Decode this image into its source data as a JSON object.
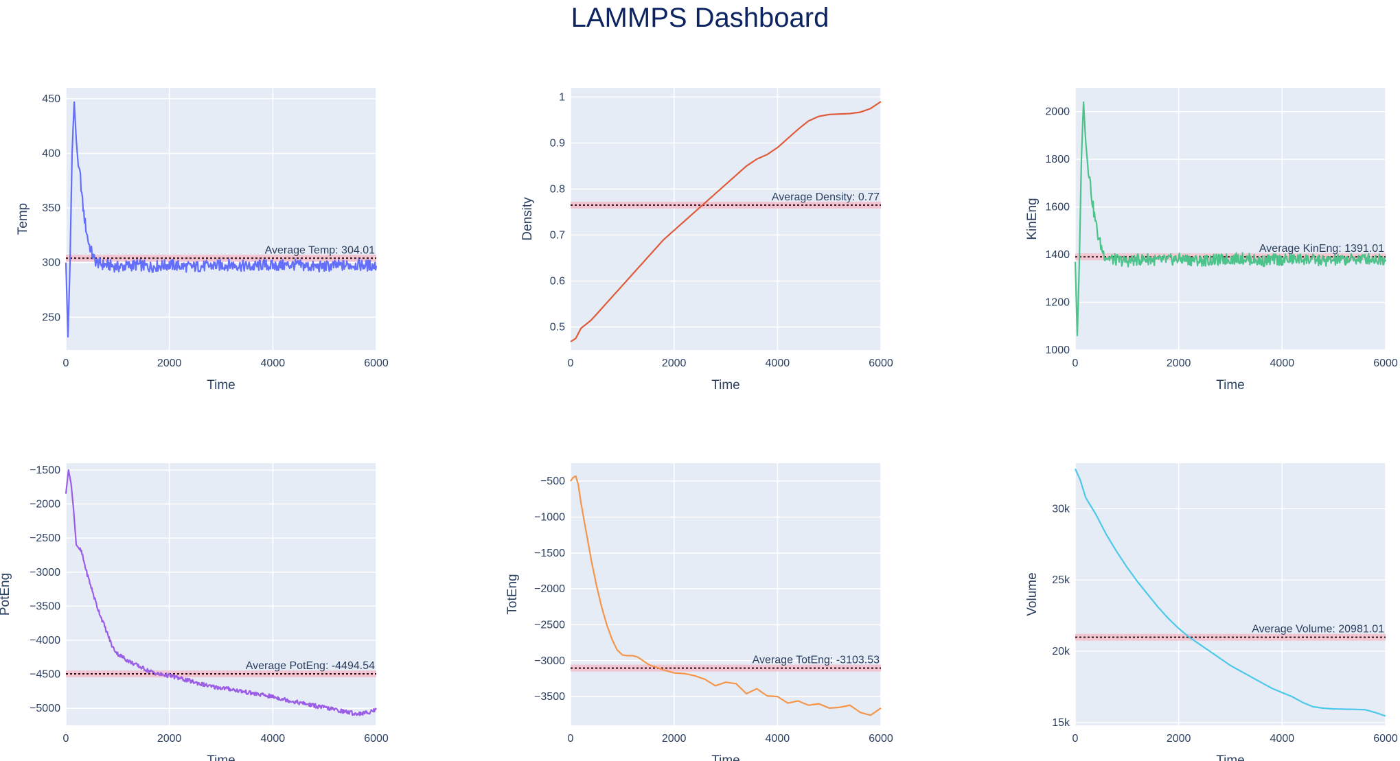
{
  "title": "LAMMPS Dashboard",
  "chart_data": [
    {
      "type": "line",
      "name": "Temp",
      "xlabel": "Time",
      "ylabel": "Temp",
      "color": "#636efa",
      "xlim": [
        0,
        6000
      ],
      "ylim": [
        220,
        460
      ],
      "xticks": [
        0,
        2000,
        4000,
        6000
      ],
      "xtick_labels": [
        "0",
        "2000",
        "4000",
        "6000"
      ],
      "yticks": [
        250,
        300,
        350,
        400,
        450
      ],
      "ytick_labels": [
        "250",
        "300",
        "350",
        "400",
        "450"
      ],
      "average": 304.01,
      "average_label": "Average Temp: 304.01",
      "x": [
        0,
        40,
        80,
        120,
        160,
        200,
        240,
        280,
        320,
        360,
        400,
        440,
        480,
        520,
        560,
        600,
        660,
        720,
        800,
        900,
        1000,
        1200,
        1400,
        1600,
        1800,
        2000,
        2400,
        2800,
        3200,
        3400,
        3600,
        3800,
        4000,
        4400,
        4800,
        5200,
        5600,
        6000
      ],
      "y": [
        300,
        232,
        300,
        400,
        447,
        412,
        388,
        378,
        355,
        340,
        328,
        318,
        312,
        306,
        302,
        300,
        299,
        298,
        298,
        297,
        296,
        297,
        298,
        296,
        297,
        298,
        296,
        297,
        298,
        297,
        296,
        298,
        297,
        298,
        296,
        297,
        298,
        297
      ],
      "grid": true
    },
    {
      "type": "line",
      "name": "Density",
      "xlabel": "Time",
      "ylabel": "Density",
      "color": "#e05a3a",
      "xlim": [
        0,
        6000
      ],
      "ylim": [
        0.45,
        1.02
      ],
      "xticks": [
        0,
        2000,
        4000,
        6000
      ],
      "xtick_labels": [
        "0",
        "2000",
        "4000",
        "6000"
      ],
      "yticks": [
        0.5,
        0.6,
        0.7,
        0.8,
        0.9,
        1.0
      ],
      "ytick_labels": [
        "0.5",
        "0.6",
        "0.7",
        "0.8",
        "0.9",
        "1"
      ],
      "average": 0.765,
      "average_label": "Average Density: 0.77",
      "x": [
        0,
        100,
        200,
        400,
        600,
        800,
        1000,
        1200,
        1400,
        1600,
        1800,
        2000,
        2200,
        2400,
        2600,
        2800,
        3000,
        3200,
        3400,
        3600,
        3800,
        4000,
        4200,
        4400,
        4600,
        4800,
        5000,
        5200,
        5400,
        5600,
        5800,
        6000
      ],
      "y": [
        0.468,
        0.475,
        0.497,
        0.515,
        0.54,
        0.565,
        0.59,
        0.615,
        0.64,
        0.665,
        0.69,
        0.71,
        0.73,
        0.75,
        0.77,
        0.79,
        0.81,
        0.83,
        0.85,
        0.865,
        0.875,
        0.89,
        0.91,
        0.93,
        0.948,
        0.958,
        0.962,
        0.963,
        0.964,
        0.967,
        0.975,
        0.99
      ],
      "grid": true
    },
    {
      "type": "line",
      "name": "KinEng",
      "xlabel": "Time",
      "ylabel": "KinEng",
      "color": "#4cc38a",
      "xlim": [
        0,
        6000
      ],
      "ylim": [
        1000,
        2100
      ],
      "xticks": [
        0,
        2000,
        4000,
        6000
      ],
      "xtick_labels": [
        "0",
        "2000",
        "4000",
        "6000"
      ],
      "yticks": [
        1000,
        1200,
        1400,
        1600,
        1800,
        2000
      ],
      "ytick_labels": [
        "1000",
        "1200",
        "1400",
        "1600",
        "1800",
        "2000"
      ],
      "average": 1391.01,
      "average_label": "Average KinEng: 1391.01",
      "x": [
        0,
        40,
        80,
        120,
        160,
        200,
        240,
        280,
        320,
        360,
        400,
        440,
        480,
        520,
        560,
        600,
        660,
        720,
        800,
        900,
        1000,
        1200,
        1400,
        1600,
        1800,
        2000,
        2400,
        2800,
        3200,
        3400,
        3600,
        3800,
        4000,
        4400,
        4800,
        5200,
        5600,
        6000
      ],
      "y": [
        1370,
        1060,
        1370,
        1800,
        2040,
        1880,
        1780,
        1720,
        1640,
        1580,
        1530,
        1480,
        1450,
        1420,
        1400,
        1390,
        1385,
        1380,
        1378,
        1375,
        1372,
        1378,
        1382,
        1375,
        1378,
        1382,
        1375,
        1378,
        1385,
        1380,
        1372,
        1380,
        1378,
        1382,
        1374,
        1378,
        1384,
        1378
      ],
      "grid": true
    },
    {
      "type": "line",
      "name": "PotEng",
      "xlabel": "Time",
      "ylabel": "PotEng",
      "color": "#9b5de5",
      "xlim": [
        0,
        6000
      ],
      "ylim": [
        -5250,
        -1400
      ],
      "xticks": [
        0,
        2000,
        4000,
        6000
      ],
      "xtick_labels": [
        "0",
        "2000",
        "4000",
        "6000"
      ],
      "yticks": [
        -5000,
        -4500,
        -4000,
        -3500,
        -3000,
        -2500,
        -2000,
        -1500
      ],
      "ytick_labels": [
        "−5000",
        "−4500",
        "−4000",
        "−3500",
        "−3000",
        "−2500",
        "−2000",
        "−1500"
      ],
      "average": -4494.54,
      "average_label": "Average PotEng: -4494.54",
      "x": [
        0,
        50,
        100,
        150,
        200,
        250,
        300,
        400,
        500,
        600,
        700,
        800,
        900,
        1000,
        1200,
        1400,
        1600,
        1800,
        2000,
        2400,
        2800,
        3200,
        3600,
        4000,
        4400,
        4800,
        5200,
        5600,
        5800,
        6000
      ],
      "y": [
        -1850,
        -1500,
        -1700,
        -2100,
        -2600,
        -2650,
        -2700,
        -3000,
        -3250,
        -3500,
        -3700,
        -3900,
        -4100,
        -4200,
        -4300,
        -4380,
        -4450,
        -4500,
        -4520,
        -4600,
        -4680,
        -4720,
        -4780,
        -4830,
        -4900,
        -4960,
        -5020,
        -5080,
        -5070,
        -5020
      ],
      "grid": true
    },
    {
      "type": "line",
      "name": "TotEng",
      "xlabel": "Time",
      "ylabel": "TotEng",
      "color": "#f4954a",
      "xlim": [
        0,
        6000
      ],
      "ylim": [
        -3900,
        -250
      ],
      "xticks": [
        0,
        2000,
        4000,
        6000
      ],
      "xtick_labels": [
        "0",
        "2000",
        "4000",
        "6000"
      ],
      "yticks": [
        -3500,
        -3000,
        -2500,
        -2000,
        -1500,
        -1000,
        -500
      ],
      "ytick_labels": [
        "−3500",
        "−3000",
        "−2500",
        "−2000",
        "−1500",
        "−1000",
        "−500"
      ],
      "average": -3103.53,
      "average_label": "Average TotEng: -3103.53",
      "x": [
        0,
        50,
        100,
        150,
        200,
        300,
        400,
        500,
        600,
        700,
        800,
        900,
        1000,
        1100,
        1200,
        1300,
        1400,
        1500,
        1600,
        1700,
        1800,
        1900,
        2000,
        2200,
        2400,
        2600,
        2800,
        3000,
        3200,
        3400,
        3600,
        3800,
        4000,
        4200,
        4400,
        4600,
        4800,
        5000,
        5200,
        5400,
        5600,
        5800,
        6000
      ],
      "y": [
        -500,
        -450,
        -430,
        -550,
        -800,
        -1200,
        -1600,
        -1950,
        -2250,
        -2500,
        -2700,
        -2850,
        -2920,
        -2930,
        -2930,
        -2950,
        -3000,
        -3050,
        -3080,
        -3100,
        -3130,
        -3150,
        -3170,
        -3180,
        -3210,
        -3260,
        -3350,
        -3300,
        -3320,
        -3460,
        -3390,
        -3490,
        -3500,
        -3590,
        -3560,
        -3620,
        -3600,
        -3660,
        -3650,
        -3620,
        -3720,
        -3760,
        -3660
      ],
      "grid": true
    },
    {
      "type": "line",
      "name": "Volume",
      "xlabel": "Time",
      "ylabel": "Volume",
      "color": "#4cc8e8",
      "xlim": [
        0,
        6000
      ],
      "ylim": [
        14800,
        33200
      ],
      "xticks": [
        0,
        2000,
        4000,
        6000
      ],
      "xtick_labels": [
        "0",
        "2000",
        "4000",
        "6000"
      ],
      "yticks": [
        15000,
        20000,
        25000,
        30000
      ],
      "ytick_labels": [
        "15k",
        "20k",
        "25k",
        "30k"
      ],
      "average": 20981.01,
      "average_label": "Average Volume: 20981.01",
      "x": [
        0,
        100,
        200,
        400,
        600,
        800,
        1000,
        1200,
        1400,
        1600,
        1800,
        2000,
        2200,
        2400,
        2600,
        2800,
        3000,
        3200,
        3400,
        3600,
        3800,
        4000,
        4200,
        4400,
        4600,
        4800,
        5000,
        5200,
        5400,
        5600,
        5800,
        6000
      ],
      "y": [
        32800,
        32000,
        30800,
        29600,
        28200,
        27000,
        25900,
        24900,
        24000,
        23100,
        22300,
        21600,
        21000,
        20500,
        20000,
        19500,
        19000,
        18600,
        18200,
        17800,
        17400,
        17100,
        16800,
        16400,
        16100,
        16000,
        15950,
        15930,
        15920,
        15900,
        15700,
        15450
      ],
      "grid": true
    }
  ]
}
